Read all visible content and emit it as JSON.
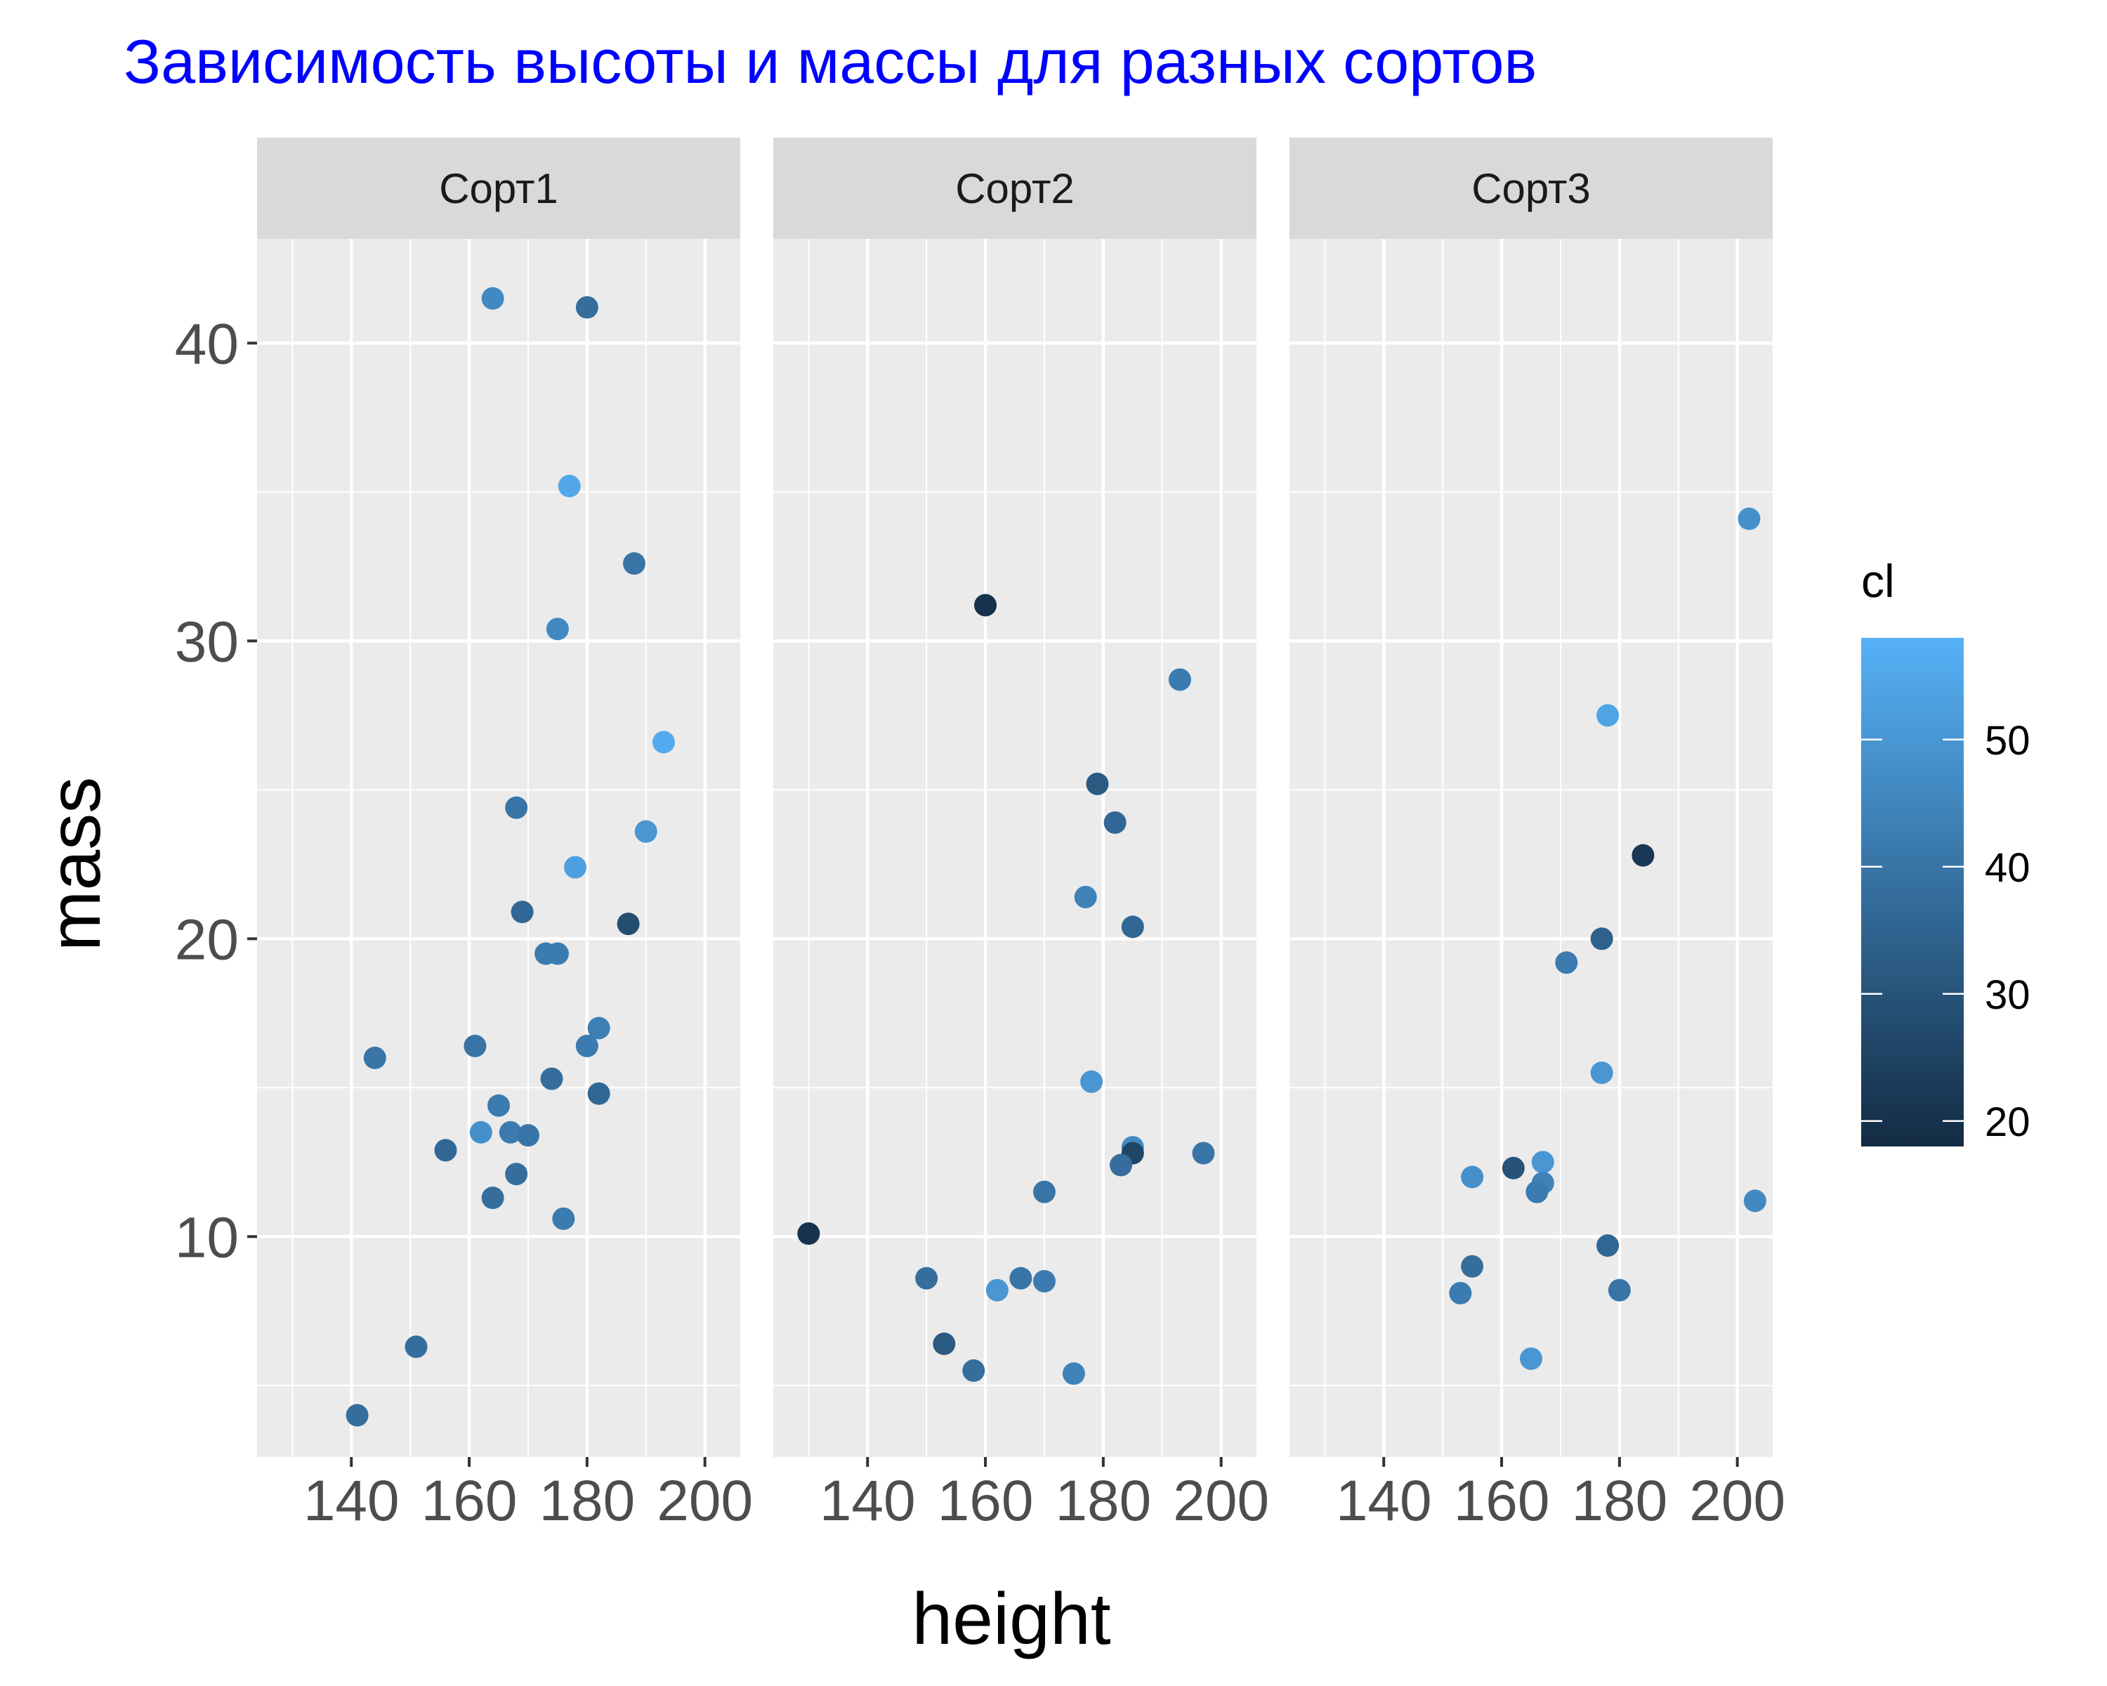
{
  "chart_data": {
    "type": "scatter",
    "title": "Зависимость высоты и массы для разных сортов",
    "xlabel": "height",
    "ylabel": "mass",
    "xlim": [
      124,
      206
    ],
    "ylim": [
      2.6,
      43.5
    ],
    "x_ticks": [
      140,
      160,
      180,
      200
    ],
    "x_tick_labels": [
      "140",
      "160",
      "180",
      "200"
    ],
    "y_ticks": [
      10,
      20,
      30,
      40
    ],
    "y_tick_labels": [
      "10",
      "20",
      "30",
      "40"
    ],
    "grid": true,
    "legend": {
      "title": "cl",
      "type": "colorbar",
      "placement": "right",
      "range": [
        18,
        58
      ],
      "ticks": [
        20,
        30,
        40,
        50
      ],
      "tick_labels": [
        "20",
        "30",
        "40",
        "50"
      ],
      "color_low": "#132B43",
      "color_high": "#56B1F7"
    },
    "facets": [
      {
        "name": "Сорт1",
        "points": [
          {
            "x": 164,
            "y": 41.5,
            "cl": 46
          },
          {
            "x": 180,
            "y": 41.2,
            "cl": 38
          },
          {
            "x": 177,
            "y": 35.2,
            "cl": 55
          },
          {
            "x": 188,
            "y": 32.6,
            "cl": 40
          },
          {
            "x": 175,
            "y": 30.4,
            "cl": 46
          },
          {
            "x": 193,
            "y": 26.6,
            "cl": 56
          },
          {
            "x": 168,
            "y": 24.4,
            "cl": 40
          },
          {
            "x": 190,
            "y": 23.6,
            "cl": 50
          },
          {
            "x": 178,
            "y": 22.4,
            "cl": 53
          },
          {
            "x": 169,
            "y": 20.9,
            "cl": 36
          },
          {
            "x": 187,
            "y": 20.5,
            "cl": 28
          },
          {
            "x": 173,
            "y": 19.5,
            "cl": 42
          },
          {
            "x": 175,
            "y": 19.5,
            "cl": 42
          },
          {
            "x": 182,
            "y": 17.0,
            "cl": 43
          },
          {
            "x": 161,
            "y": 16.4,
            "cl": 40
          },
          {
            "x": 180,
            "y": 16.4,
            "cl": 42
          },
          {
            "x": 144,
            "y": 16.0,
            "cl": 40
          },
          {
            "x": 174,
            "y": 15.3,
            "cl": 38
          },
          {
            "x": 182,
            "y": 14.8,
            "cl": 36
          },
          {
            "x": 165,
            "y": 14.4,
            "cl": 42
          },
          {
            "x": 162,
            "y": 13.5,
            "cl": 48
          },
          {
            "x": 167,
            "y": 13.5,
            "cl": 42
          },
          {
            "x": 170,
            "y": 13.4,
            "cl": 40
          },
          {
            "x": 156,
            "y": 12.9,
            "cl": 36
          },
          {
            "x": 168,
            "y": 12.1,
            "cl": 38
          },
          {
            "x": 164,
            "y": 11.3,
            "cl": 38
          },
          {
            "x": 176,
            "y": 10.6,
            "cl": 42
          },
          {
            "x": 151,
            "y": 6.3,
            "cl": 38
          },
          {
            "x": 141,
            "y": 4.0,
            "cl": 38
          }
        ]
      },
      {
        "name": "Сорт2",
        "points": [
          {
            "x": 160,
            "y": 31.2,
            "cl": 20
          },
          {
            "x": 193,
            "y": 28.7,
            "cl": 42
          },
          {
            "x": 179,
            "y": 25.2,
            "cl": 32
          },
          {
            "x": 182,
            "y": 23.9,
            "cl": 36
          },
          {
            "x": 177,
            "y": 21.4,
            "cl": 44
          },
          {
            "x": 185,
            "y": 20.4,
            "cl": 36
          },
          {
            "x": 178,
            "y": 15.2,
            "cl": 50
          },
          {
            "x": 185,
            "y": 13.0,
            "cl": 46
          },
          {
            "x": 197,
            "y": 12.8,
            "cl": 40
          },
          {
            "x": 185,
            "y": 12.8,
            "cl": 26
          },
          {
            "x": 183,
            "y": 12.4,
            "cl": 38
          },
          {
            "x": 170,
            "y": 11.5,
            "cl": 40
          },
          {
            "x": 130,
            "y": 10.1,
            "cl": 20
          },
          {
            "x": 150,
            "y": 8.6,
            "cl": 38
          },
          {
            "x": 166,
            "y": 8.6,
            "cl": 40
          },
          {
            "x": 170,
            "y": 8.5,
            "cl": 42
          },
          {
            "x": 162,
            "y": 8.2,
            "cl": 50
          },
          {
            "x": 153,
            "y": 6.4,
            "cl": 32
          },
          {
            "x": 158,
            "y": 5.5,
            "cl": 38
          },
          {
            "x": 175,
            "y": 5.4,
            "cl": 44
          }
        ]
      },
      {
        "name": "Сорт3",
        "points": [
          {
            "x": 202,
            "y": 34.1,
            "cl": 48
          },
          {
            "x": 178,
            "y": 27.5,
            "cl": 54
          },
          {
            "x": 184,
            "y": 22.8,
            "cl": 22
          },
          {
            "x": 177,
            "y": 20.0,
            "cl": 34
          },
          {
            "x": 171,
            "y": 19.2,
            "cl": 42
          },
          {
            "x": 177,
            "y": 15.5,
            "cl": 50
          },
          {
            "x": 167,
            "y": 12.5,
            "cl": 50
          },
          {
            "x": 162,
            "y": 12.3,
            "cl": 30
          },
          {
            "x": 155,
            "y": 12.0,
            "cl": 48
          },
          {
            "x": 167,
            "y": 11.8,
            "cl": 44
          },
          {
            "x": 166,
            "y": 11.5,
            "cl": 42
          },
          {
            "x": 203,
            "y": 11.2,
            "cl": 46
          },
          {
            "x": 178,
            "y": 9.7,
            "cl": 36
          },
          {
            "x": 155,
            "y": 9.0,
            "cl": 38
          },
          {
            "x": 180,
            "y": 8.2,
            "cl": 40
          },
          {
            "x": 153,
            "y": 8.1,
            "cl": 42
          },
          {
            "x": 165,
            "y": 5.9,
            "cl": 50
          }
        ]
      }
    ]
  }
}
